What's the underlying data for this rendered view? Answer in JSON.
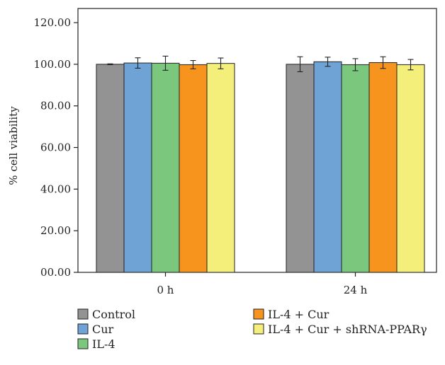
{
  "chart_data": {
    "type": "bar",
    "title": "",
    "xlabel": "",
    "ylabel": "% cell viability",
    "ylim": [
      0,
      120
    ],
    "yticks": [
      0,
      20,
      40,
      60,
      80,
      100,
      120
    ],
    "ytick_labels": [
      "00.00",
      "20.00",
      "40.00",
      "60.00",
      "80.00",
      "100.00",
      "120.00"
    ],
    "categories": [
      "0 h",
      "24 h"
    ],
    "grid": false,
    "legend_position": "bottom",
    "series": [
      {
        "name": "Control",
        "color": "#939393",
        "values": [
          100.0,
          100.0
        ],
        "errors": [
          0.2,
          3.6
        ]
      },
      {
        "name": "Cur",
        "color": "#6fa3d6",
        "values": [
          100.6,
          101.2
        ],
        "errors": [
          2.5,
          2.2
        ]
      },
      {
        "name": "IL-4",
        "color": "#7ac77d",
        "values": [
          100.5,
          99.8
        ],
        "errors": [
          3.4,
          2.9
        ]
      },
      {
        "name": "IL-4 + Cur",
        "color": "#f7941d",
        "values": [
          99.8,
          100.8
        ],
        "errors": [
          2.0,
          2.8
        ]
      },
      {
        "name": "IL-4 + Cur + shRNA-PPARγ",
        "color": "#f4ee7a",
        "values": [
          100.4,
          99.8
        ],
        "errors": [
          2.6,
          2.5
        ]
      }
    ]
  }
}
